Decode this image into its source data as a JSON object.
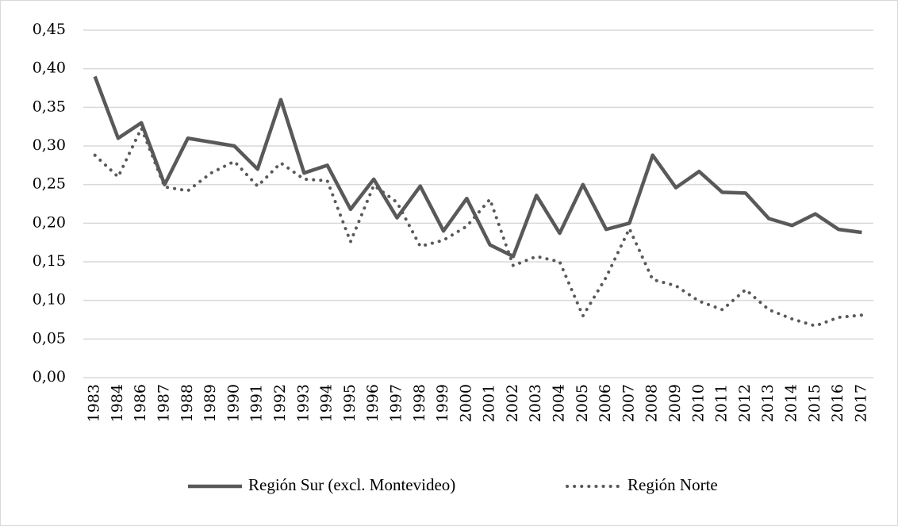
{
  "chart_data": {
    "type": "line",
    "categories": [
      "1983",
      "1984",
      "1986",
      "1987",
      "1988",
      "1989",
      "1990",
      "1991",
      "1992",
      "1993",
      "1994",
      "1995",
      "1996",
      "1997",
      "1998",
      "1999",
      "2000",
      "2001",
      "2002",
      "2003",
      "2004",
      "2005",
      "2006",
      "2007",
      "2008",
      "2009",
      "2010",
      "2011",
      "2012",
      "2013",
      "2014",
      "2015",
      "2016",
      "2017"
    ],
    "series": [
      {
        "name": "Región Sur (excl. Montevideo)",
        "color": "#595959",
        "style": "solid",
        "values": [
          0.39,
          0.31,
          0.33,
          0.25,
          0.31,
          0.305,
          0.3,
          0.27,
          0.36,
          0.265,
          0.275,
          0.218,
          0.257,
          0.207,
          0.248,
          0.19,
          0.232,
          0.172,
          0.157,
          0.236,
          0.187,
          0.25,
          0.192,
          0.2,
          0.288,
          0.246,
          0.267,
          0.24,
          0.239,
          0.206,
          0.197,
          0.212,
          0.192,
          0.188
        ]
      },
      {
        "name": "Región Norte",
        "color": "#595959",
        "style": "dotted",
        "values": [
          0.288,
          0.26,
          0.323,
          0.247,
          0.242,
          0.265,
          0.28,
          0.248,
          0.278,
          0.257,
          0.255,
          0.176,
          0.249,
          0.227,
          0.17,
          0.178,
          0.196,
          0.231,
          0.145,
          0.157,
          0.15,
          0.08,
          0.13,
          0.193,
          0.127,
          0.119,
          0.099,
          0.088,
          0.114,
          0.088,
          0.076,
          0.067,
          0.078,
          0.081
        ]
      }
    ],
    "ylim": [
      0,
      0.45
    ],
    "yticks": [
      {
        "value": 0,
        "label": "0,00"
      },
      {
        "value": 0.05,
        "label": "0,05"
      },
      {
        "value": 0.1,
        "label": "0,10"
      },
      {
        "value": 0.15,
        "label": "0,15"
      },
      {
        "value": 0.2,
        "label": "0,20"
      },
      {
        "value": 0.25,
        "label": "0,25"
      },
      {
        "value": 0.3,
        "label": "0,30"
      },
      {
        "value": 0.35,
        "label": "0,35"
      },
      {
        "value": 0.4,
        "label": "0,40"
      },
      {
        "value": 0.45,
        "label": "0,45"
      }
    ],
    "grid": true,
    "legend": "bottom"
  }
}
